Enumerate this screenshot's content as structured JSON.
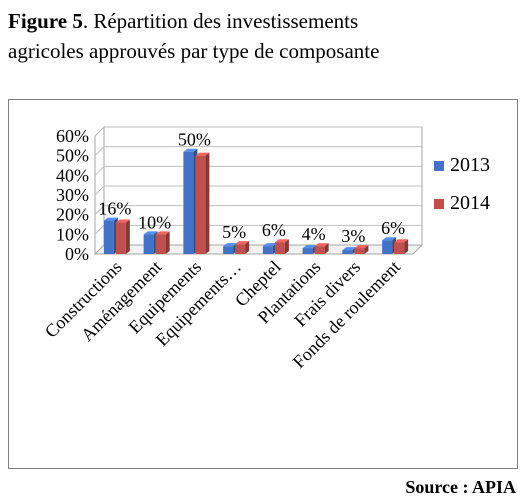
{
  "figure": {
    "label": "Figure 5",
    "title_line1_rest": ". Répartition des investissements",
    "title_line2": "agricoles approuvés par type de composante"
  },
  "source": "Source : APIA",
  "colors": {
    "2013": "#4472c4",
    "2014": "#c0504d"
  },
  "chart_data": {
    "type": "bar",
    "categories": [
      "Constructions",
      "Aménagement",
      "Equipements",
      "Equipements…",
      "Cheptel",
      "Plantations",
      "Frais divers",
      "Fonds de roulement"
    ],
    "series": [
      {
        "name": "2013",
        "values": [
          17,
          10,
          52,
          4,
          4,
          3,
          2,
          7
        ]
      },
      {
        "name": "2014",
        "values": [
          16,
          10,
          50,
          5,
          6,
          4,
          3,
          6
        ]
      }
    ],
    "data_labels": [
      "16%",
      "10%",
      "50%",
      "5%",
      "6%",
      "4%",
      "3%",
      "6%"
    ],
    "y_ticks": [
      "0%",
      "10%",
      "20%",
      "30%",
      "40%",
      "50%",
      "60%"
    ],
    "ylim": [
      0,
      60
    ],
    "legend": "right",
    "grid": true,
    "style": "3d-clustered-column"
  }
}
